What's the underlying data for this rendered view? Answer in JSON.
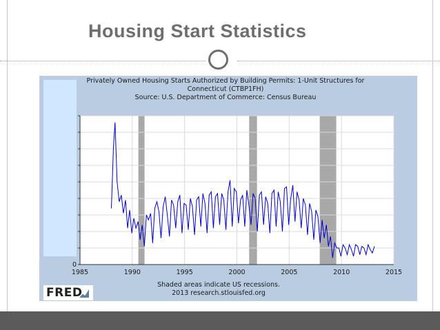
{
  "slide": {
    "title": "Housing Start Statistics"
  },
  "chart_data": {
    "type": "line",
    "title_lines": [
      "Privately Owned Housing Starts Authorized by Building Permits: 1-Unit Structures for",
      "Connecticut (CTBP1FH)",
      "Source: U.S. Department of Commerce: Census Bureau"
    ],
    "footer_lines": [
      "Shaded areas indicate US recessions.",
      "2013 research.stlouisfed.org"
    ],
    "logo_text": "FRED",
    "xlim": [
      1985,
      2015
    ],
    "x_ticks": [
      1985,
      1990,
      1995,
      2000,
      2005,
      2010,
      2015
    ],
    "ylim": [
      0,
      9
    ],
    "y_ticks": [
      0
    ],
    "y_tick_labels": [
      "0"
    ],
    "grid": true,
    "legend": "none",
    "line_color": "#0000cc",
    "recession_color": "#a8a8a8",
    "recessions": [
      [
        1990.58,
        1991.17
      ],
      [
        2001.17,
        2001.92
      ],
      [
        2007.92,
        2009.5
      ]
    ],
    "series": [
      {
        "x": [
          1988.0,
          1988.2,
          1988.35,
          1988.55,
          1988.75,
          1988.95,
          1989.15,
          1989.35,
          1989.55,
          1989.75,
          1989.95,
          1990.15,
          1990.35,
          1990.55,
          1990.75,
          1990.95,
          1991.15,
          1991.35,
          1991.55,
          1991.75,
          1991.95,
          1992.15,
          1992.35,
          1992.55,
          1992.75,
          1992.95,
          1993.15,
          1993.35,
          1993.55,
          1993.75,
          1993.95,
          1994.15,
          1994.35,
          1994.55,
          1994.75,
          1994.95,
          1995.15,
          1995.35,
          1995.55,
          1995.75,
          1995.95,
          1996.15,
          1996.35,
          1996.55,
          1996.75,
          1996.95,
          1997.15,
          1997.35,
          1997.55,
          1997.75,
          1997.95,
          1998.15,
          1998.35,
          1998.55,
          1998.75,
          1998.95,
          1999.15,
          1999.35,
          1999.55,
          1999.75,
          1999.95,
          2000.15,
          2000.35,
          2000.55,
          2000.75,
          2000.95,
          2001.15,
          2001.35,
          2001.55,
          2001.75,
          2001.95,
          2002.15,
          2002.35,
          2002.55,
          2002.75,
          2002.95,
          2003.15,
          2003.35,
          2003.55,
          2003.75,
          2003.95,
          2004.15,
          2004.35,
          2004.55,
          2004.75,
          2004.95,
          2005.15,
          2005.35,
          2005.55,
          2005.75,
          2005.95,
          2006.15,
          2006.35,
          2006.55,
          2006.75,
          2006.95,
          2007.15,
          2007.35,
          2007.55,
          2007.75,
          2007.95,
          2008.15,
          2008.35,
          2008.55,
          2008.75,
          2008.95,
          2009.15,
          2009.35,
          2009.55,
          2009.75,
          2009.95,
          2010.15,
          2010.35,
          2010.55,
          2010.75,
          2010.95,
          2011.15,
          2011.35,
          2011.55,
          2011.75,
          2011.95,
          2012.15,
          2012.35,
          2012.55,
          2012.75,
          2012.95,
          2013.15
        ],
        "y": [
          3.4,
          7.1,
          8.6,
          5.0,
          3.8,
          4.2,
          3.1,
          3.9,
          2.2,
          3.3,
          1.9,
          2.8,
          2.2,
          2.6,
          1.5,
          2.4,
          1.1,
          3.0,
          2.7,
          3.1,
          1.3,
          3.4,
          3.8,
          3.2,
          1.6,
          3.5,
          4.1,
          3.0,
          1.7,
          3.9,
          3.6,
          2.2,
          3.8,
          4.2,
          1.9,
          3.7,
          3.6,
          2.1,
          4.0,
          3.5,
          1.8,
          3.9,
          4.1,
          2.3,
          4.3,
          3.7,
          1.9,
          4.2,
          4.4,
          2.2,
          4.1,
          4.3,
          2.4,
          4.3,
          3.9,
          2.1,
          4.4,
          5.1,
          2.3,
          4.6,
          4.4,
          2.5,
          3.9,
          4.2,
          2.3,
          4.5,
          3.6,
          2.4,
          4.3,
          4.0,
          2.0,
          4.2,
          4.4,
          2.4,
          4.1,
          3.7,
          1.9,
          4.3,
          4.5,
          2.3,
          4.4,
          3.8,
          2.0,
          4.6,
          4.7,
          2.4,
          4.0,
          4.8,
          2.6,
          4.4,
          3.9,
          2.2,
          4.0,
          3.6,
          1.8,
          3.7,
          3.2,
          1.5,
          3.3,
          2.9,
          1.3,
          2.7,
          1.6,
          2.4,
          1.1,
          1.7,
          0.4,
          1.3,
          1.0,
          1.0,
          0.5,
          1.2,
          1.0,
          0.6,
          1.2,
          0.9,
          0.5,
          1.2,
          1.1,
          0.6,
          1.1,
          1.0,
          0.6,
          1.2,
          0.9,
          0.7,
          1.1
        ]
      }
    ]
  }
}
